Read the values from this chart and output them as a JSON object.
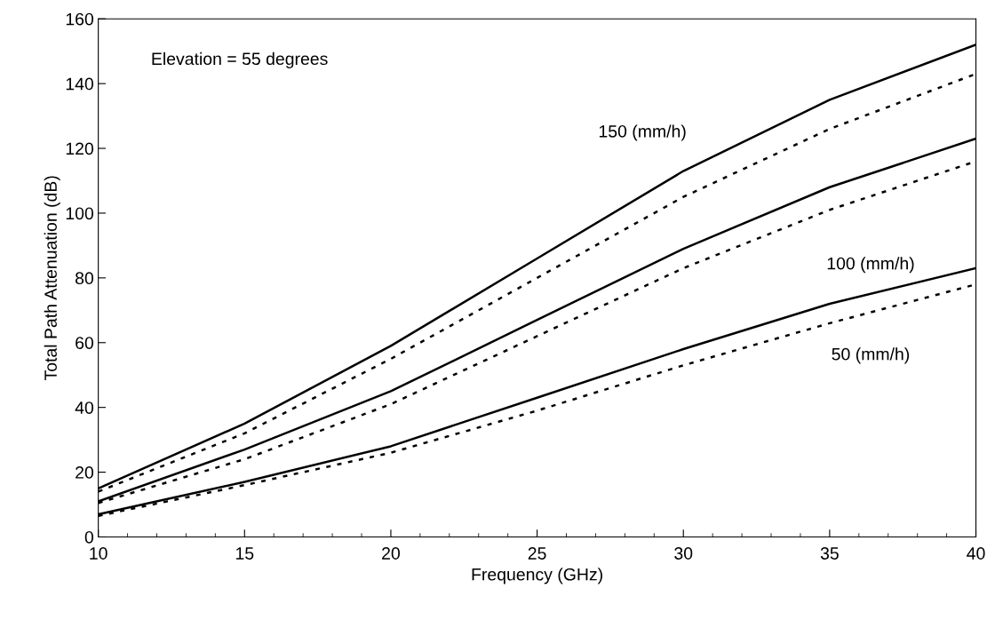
{
  "chart_data": {
    "type": "line",
    "xlabel": "Frequency (GHz)",
    "ylabel": "Total Path Attenuation (dB)",
    "x": [
      10,
      15,
      20,
      25,
      30,
      35,
      40
    ],
    "series": [
      {
        "color": "#000000",
        "line_style": "solid",
        "values": [
          15,
          35,
          59,
          86,
          113,
          135,
          152
        ]
      },
      {
        "color": "#000000",
        "line_style": "dotted",
        "values": [
          14,
          32,
          55,
          80,
          105,
          126,
          143
        ]
      },
      {
        "color": "#000000",
        "line_style": "solid",
        "values": [
          11,
          27,
          45,
          67,
          89,
          108,
          123
        ]
      },
      {
        "color": "#000000",
        "line_style": "dotted",
        "values": [
          10.5,
          24,
          41,
          62,
          83,
          101,
          116
        ]
      },
      {
        "color": "#000000",
        "line_style": "solid",
        "values": [
          7,
          17,
          28,
          43,
          58,
          72,
          83
        ]
      },
      {
        "color": "#000000",
        "line_style": "dotted",
        "values": [
          6.5,
          16,
          26,
          39,
          53,
          66,
          78
        ]
      }
    ],
    "annotations": [
      "Elevation = 55 degrees",
      "150 (mm/h)",
      "100 (mm/h)",
      "50 (mm/h)"
    ],
    "xlim": [
      10,
      40
    ],
    "xticks": [
      10,
      15,
      20,
      25,
      30,
      35,
      40
    ],
    "ylim": [
      0,
      160
    ],
    "yticks": [
      0,
      20,
      40,
      60,
      80,
      100,
      120,
      140,
      160
    ],
    "grid": false,
    "legend": false,
    "marker": "none"
  }
}
